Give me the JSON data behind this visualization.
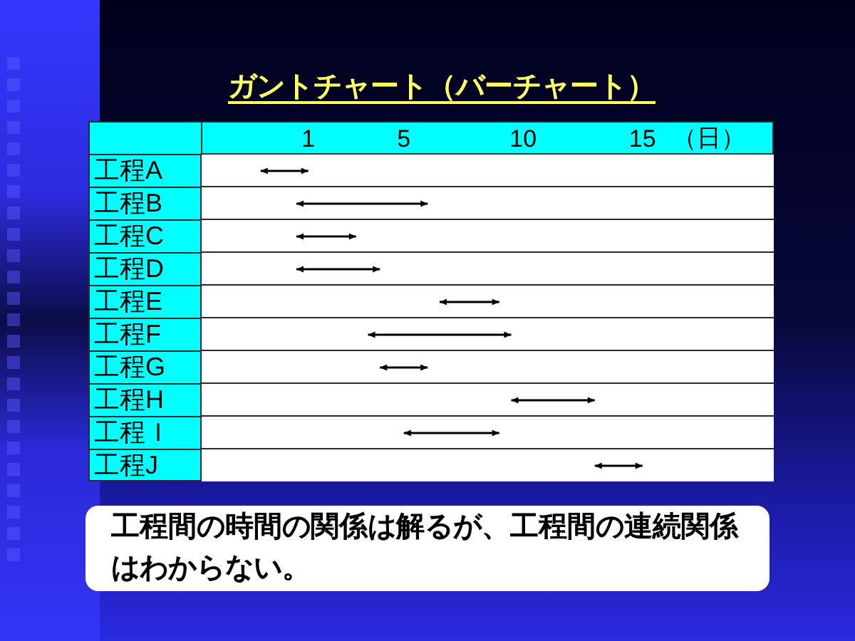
{
  "chart_data": {
    "type": "bar",
    "orientation": "horizontal",
    "title": "ガントチャート（バーチャート）",
    "xlabel": "（日）",
    "categories": [
      "工程A",
      "工程B",
      "工程C",
      "工程D",
      "工程E",
      "工程F",
      "工程G",
      "工程H",
      "工程Ｉ",
      "工程J"
    ],
    "base": [
      -1,
      0.5,
      0.5,
      0.5,
      6.5,
      3.5,
      4,
      9.5,
      5,
      13
    ],
    "values": [
      2,
      5.5,
      2.5,
      3.5,
      2.5,
      6,
      2,
      3.5,
      4,
      2
    ],
    "color": "#000000",
    "xlim": [
      -3.5,
      20.5
    ],
    "xticks": [
      1,
      5,
      10,
      15
    ],
    "grid": "y",
    "annotations": [
      "工程間の時間の関係は解るが、工程間の連続関係はわからない。"
    ]
  }
}
